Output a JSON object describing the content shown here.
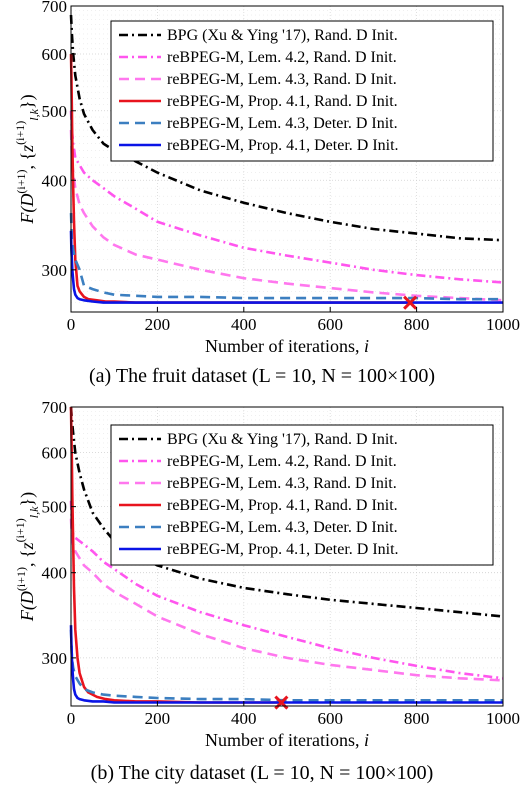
{
  "chart_data": [
    {
      "type": "line",
      "caption": "(a) The fruit dataset (L = 10, N = 100×100)",
      "xlabel": "Number of iterations, i",
      "ylabel": "F(D^{(i+1)}, {z_{l,k}^{(i+1)}})",
      "xlim": [
        0,
        1000
      ],
      "ylim": [
        262,
        700
      ],
      "yscale": "log",
      "xticks": [
        0,
        200,
        400,
        600,
        800,
        1000
      ],
      "yticks": [
        300,
        400,
        500,
        600,
        700
      ],
      "grid": true,
      "legend_position": "top-right",
      "marker": {
        "x": 785,
        "y": 270,
        "color": "#e8141e",
        "shape": "x"
      },
      "series": [
        {
          "name": "BPG (Xu & Ying '17), Rand. D Init.",
          "color": "#000000",
          "style": "dashdot",
          "x": [
            0,
            2,
            5,
            10,
            20,
            30,
            50,
            75,
            100,
            150,
            200,
            300,
            400,
            500,
            600,
            700,
            800,
            900,
            1000
          ],
          "y": [
            680,
            640,
            600,
            560,
            520,
            495,
            470,
            450,
            440,
            425,
            410,
            387,
            372,
            360,
            350,
            342,
            337,
            332,
            330
          ]
        },
        {
          "name": "reBPEG-M, Lem. 4.2, Rand. D Init.",
          "color": "#ff55ee",
          "style": "dashdot",
          "x": [
            0,
            2,
            5,
            10,
            20,
            30,
            50,
            75,
            100,
            150,
            200,
            300,
            400,
            500,
            600,
            700,
            800,
            900,
            1000
          ],
          "y": [
            500,
            470,
            450,
            430,
            420,
            410,
            400,
            390,
            380,
            365,
            350,
            335,
            322,
            314,
            307,
            300,
            295,
            291,
            288
          ]
        },
        {
          "name": "reBPEG-M, Lem. 4.3, Rand. D Init.",
          "color": "#ff77ee",
          "style": "dashed",
          "x": [
            0,
            2,
            5,
            10,
            20,
            30,
            50,
            75,
            100,
            150,
            200,
            300,
            400,
            500,
            600,
            700,
            800,
            900,
            1000
          ],
          "y": [
            470,
            430,
            410,
            390,
            370,
            360,
            345,
            333,
            325,
            315,
            310,
            300,
            292,
            287,
            283,
            279,
            276,
            274,
            272
          ]
        },
        {
          "name": "reBPEG-M, Prop. 4.1, Rand. D Init.",
          "color": "#e8141e",
          "style": "solid",
          "x": [
            0,
            1,
            2,
            3,
            5,
            7,
            10,
            15,
            20,
            30,
            40,
            60,
            80,
            100,
            150,
            200,
            300,
            500,
            785
          ],
          "y": [
            600,
            560,
            500,
            450,
            390,
            350,
            310,
            285,
            280,
            275,
            273,
            272,
            271,
            271,
            270,
            270,
            270,
            270,
            270
          ]
        },
        {
          "name": "reBPEG-M, Lem. 4.3, Deter. D Init.",
          "color": "#3c7fc0",
          "style": "dashed",
          "x": [
            0,
            2,
            5,
            10,
            20,
            30,
            50,
            75,
            100,
            150,
            200,
            300,
            400,
            500,
            600,
            700,
            800,
            900,
            1000
          ],
          "y": [
            360,
            330,
            320,
            310,
            300,
            285,
            282,
            279,
            277,
            276,
            275,
            275,
            274,
            274,
            274,
            274,
            274,
            273,
            273
          ]
        },
        {
          "name": "reBPEG-M, Prop. 4.1, Deter. D Init.",
          "color": "#0a14e6",
          "style": "solid",
          "x": [
            0,
            1,
            2,
            3,
            5,
            7,
            10,
            15,
            20,
            30,
            50,
            75,
            100,
            200,
            400,
            600,
            800,
            1000
          ],
          "y": [
            340,
            320,
            310,
            300,
            290,
            282,
            277,
            274,
            273,
            272,
            271,
            270,
            270,
            270,
            270,
            270,
            270,
            270
          ]
        }
      ]
    },
    {
      "type": "line",
      "caption": "(b) The city dataset (L = 10, N = 100×100)",
      "xlabel": "Number of iterations, i",
      "ylabel": "F(D^{(i+1)}, {z_{l,k}^{(i+1)}})",
      "xlim": [
        0,
        1000
      ],
      "ylim": [
        255,
        700
      ],
      "yscale": "log",
      "xticks": [
        0,
        200,
        400,
        600,
        800,
        1000
      ],
      "yticks": [
        300,
        400,
        500,
        600,
        700
      ],
      "grid": true,
      "legend_position": "top-right",
      "marker": {
        "x": 487,
        "y": 258,
        "color": "#e8141e",
        "shape": "x"
      },
      "series": [
        {
          "name": "BPG (Xu & Ying '17), Rand. D Init.",
          "color": "#000000",
          "style": "dashdot",
          "x": [
            0,
            2,
            5,
            10,
            20,
            30,
            50,
            75,
            100,
            150,
            200,
            300,
            400,
            500,
            600,
            700,
            800,
            900,
            1000
          ],
          "y": [
            700,
            670,
            640,
            600,
            560,
            530,
            490,
            465,
            445,
            425,
            410,
            392,
            380,
            372,
            365,
            360,
            355,
            350,
            345
          ]
        },
        {
          "name": "reBPEG-M, Lem. 4.2, Rand. D Init.",
          "color": "#ff55ee",
          "style": "dashdot",
          "x": [
            0,
            2,
            5,
            10,
            20,
            30,
            50,
            75,
            100,
            150,
            200,
            300,
            400,
            500,
            600,
            700,
            800,
            900,
            1000
          ],
          "y": [
            510,
            470,
            455,
            450,
            445,
            440,
            430,
            415,
            405,
            385,
            370,
            350,
            335,
            322,
            310,
            300,
            292,
            285,
            280
          ]
        },
        {
          "name": "reBPEG-M, Lem. 4.3, Rand. D Init.",
          "color": "#ff77ee",
          "style": "dashed",
          "x": [
            0,
            2,
            5,
            10,
            20,
            30,
            50,
            75,
            100,
            150,
            200,
            300,
            400,
            500,
            600,
            700,
            800,
            900,
            1000
          ],
          "y": [
            480,
            450,
            440,
            430,
            420,
            410,
            400,
            385,
            375,
            360,
            345,
            325,
            310,
            300,
            293,
            288,
            283,
            280,
            278
          ]
        },
        {
          "name": "reBPEG-M, Prop. 4.1, Rand. D Init.",
          "color": "#e8141e",
          "style": "solid",
          "x": [
            0,
            1,
            2,
            3,
            5,
            7,
            10,
            15,
            20,
            30,
            40,
            60,
            80,
            100,
            150,
            200,
            300,
            400,
            487
          ],
          "y": [
            700,
            640,
            580,
            520,
            440,
            380,
            330,
            300,
            285,
            272,
            267,
            263,
            261,
            260,
            259,
            259,
            258,
            258,
            258
          ]
        },
        {
          "name": "reBPEG-M, Lem. 4.3, Deter. D Init.",
          "color": "#3c7fc0",
          "style": "dashed",
          "x": [
            0,
            2,
            5,
            10,
            20,
            30,
            50,
            75,
            100,
            150,
            200,
            300,
            400,
            500,
            600,
            700,
            800,
            900,
            1000
          ],
          "y": [
            330,
            300,
            290,
            282,
            275,
            270,
            267,
            265,
            264,
            263,
            262,
            261,
            261,
            260,
            260,
            260,
            260,
            260,
            260
          ]
        },
        {
          "name": "reBPEG-M, Prop. 4.1, Deter. D Init.",
          "color": "#0a14e6",
          "style": "solid",
          "x": [
            0,
            1,
            2,
            3,
            5,
            7,
            10,
            15,
            20,
            30,
            50,
            75,
            100,
            200,
            400,
            600,
            800,
            1000
          ],
          "y": [
            335,
            315,
            300,
            290,
            278,
            270,
            265,
            262,
            261,
            260,
            259,
            259,
            258,
            258,
            258,
            258,
            258,
            258
          ]
        }
      ]
    }
  ]
}
